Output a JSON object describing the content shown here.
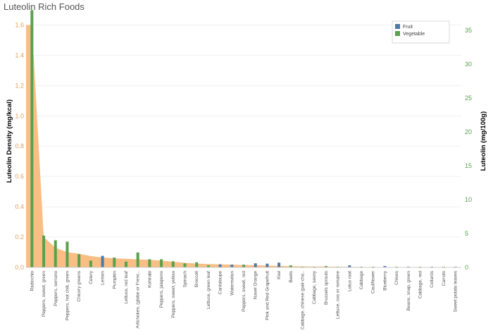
{
  "chart_data": {
    "type": "bar",
    "title": "Luteolin Rich Foods",
    "ylabel_left": "Luteolin Density (mg/kcal)",
    "ylabel_right": "Luteolin (mg/100g)",
    "ylim_left": [
      0,
      1.7
    ],
    "yticks_left": [
      "0.0",
      "0.2",
      "0.4",
      "0.6",
      "0.8",
      "1.0",
      "1.2",
      "1.4",
      "1.6"
    ],
    "ylim_right": [
      0,
      38
    ],
    "yticks_right": [
      "0",
      "5",
      "10",
      "15",
      "20",
      "25",
      "30",
      "35"
    ],
    "legend": {
      "position": "top-right",
      "entries": [
        "Fruit",
        "Vegetable"
      ]
    },
    "colors": {
      "Fruit": "#4e79a7",
      "Vegetable": "#59a14f",
      "area": "#f7b87a",
      "left_axis": "#e0a060",
      "right_axis": "#59a14f"
    },
    "categories": [
      "Radicchio",
      "Peppers, sweet, green",
      "Peppers, serrano",
      "Peppers, hot chili, green",
      "Chicory greens",
      "Celery",
      "Lemon",
      "Pumpkin",
      "Lettuce, red leaf",
      "Artichokes, (globe or Frenc..",
      "Kohlrabi",
      "Peppers, jalapeno",
      "Peppers, sweet, yellow",
      "Spinach",
      "Broccoli",
      "Lettuce, green leaf",
      "Cantaloupe",
      "Watermelon",
      "Peppers, sweet, red",
      "Navel Orange",
      "Pink and Red Grapefruit",
      "Kiwi",
      "Beets",
      "Cabbage, chinese (pak-cho..",
      "Cabbage, savoy",
      "Brussels sprouts",
      "Lettuce, cos or romaine",
      "Lotus root",
      "Cabbage",
      "Cauliflower",
      "Blueberry",
      "Chives",
      "Beans, snap, green",
      "Cabbage, red",
      "Collards",
      "Carrots",
      "Sweet potato leaves"
    ],
    "group": [
      "Vegetable",
      "Vegetable",
      "Vegetable",
      "Vegetable",
      "Vegetable",
      "Vegetable",
      "Fruit",
      "Vegetable",
      "Vegetable",
      "Vegetable",
      "Vegetable",
      "Vegetable",
      "Vegetable",
      "Vegetable",
      "Vegetable",
      "Vegetable",
      "Fruit",
      "Fruit",
      "Vegetable",
      "Fruit",
      "Fruit",
      "Fruit",
      "Vegetable",
      "Vegetable",
      "Vegetable",
      "Vegetable",
      "Vegetable",
      "Fruit",
      "Vegetable",
      "Vegetable",
      "Fruit",
      "Vegetable",
      "Vegetable",
      "Vegetable",
      "Vegetable",
      "Vegetable",
      "Vegetable"
    ],
    "series": [
      {
        "name": "Luteolin (mg/100g)",
        "axis": "right",
        "values": [
          37.96,
          4.7,
          4.0,
          3.8,
          1.95,
          1.0,
          1.7,
          1.45,
          0.85,
          2.2,
          1.2,
          1.2,
          0.9,
          0.6,
          0.75,
          0.3,
          0.45,
          0.4,
          0.4,
          0.6,
          0.55,
          0.7,
          0.3,
          0.05,
          0.1,
          0.2,
          0.05,
          0.3,
          0.1,
          0.05,
          0.2,
          0.1,
          0.05,
          0.05,
          0.05,
          0.05,
          0.1
        ]
      },
      {
        "name": "Luteolin Density (mg/kcal)",
        "axis": "left",
        "type": "area",
        "values": [
          1.6,
          0.2,
          0.13,
          0.1,
          0.09,
          0.075,
          0.065,
          0.06,
          0.057,
          0.053,
          0.05,
          0.045,
          0.038,
          0.03,
          0.025,
          0.022,
          0.02,
          0.018,
          0.016,
          0.014,
          0.012,
          0.01,
          0.008,
          0.007,
          0.006,
          0.005,
          0.004,
          0.0035,
          0.003,
          0.0025,
          0.002,
          0.0018,
          0.0015,
          0.0012,
          0.001,
          0.0008,
          0.0005
        ]
      }
    ]
  }
}
